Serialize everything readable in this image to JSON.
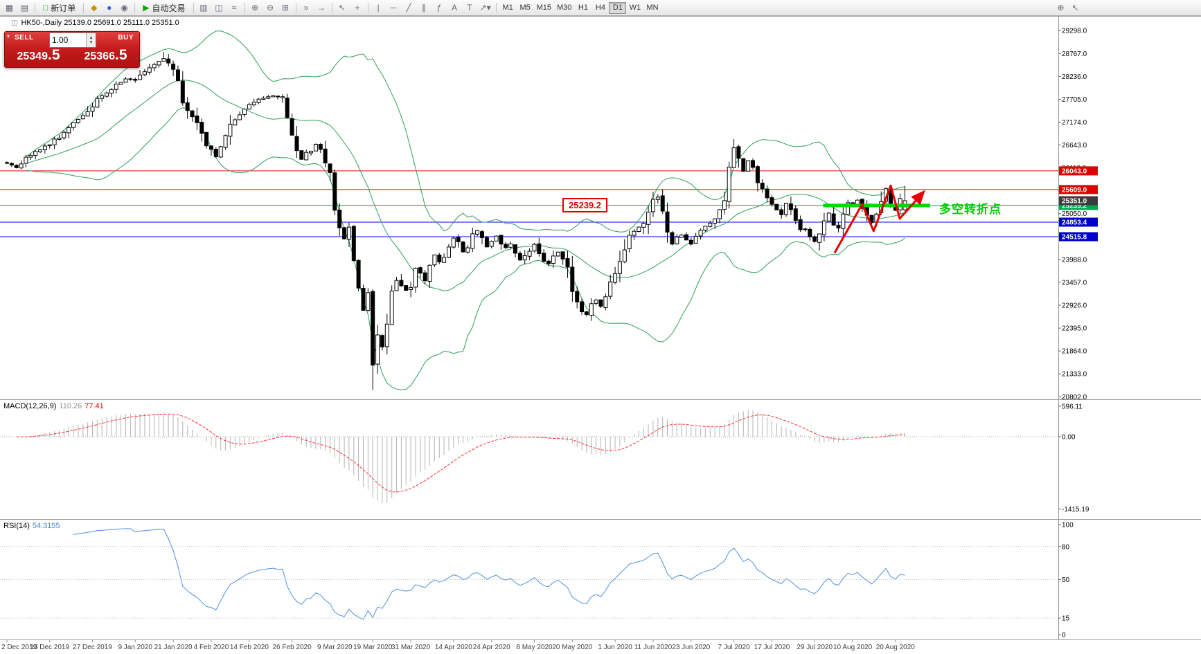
{
  "toolbar": {
    "new_order_label": "新订单",
    "autotrading_label": "自动交易",
    "timeframes": [
      "M1",
      "M5",
      "M15",
      "M30",
      "H1",
      "H4",
      "D1",
      "W1",
      "MN"
    ],
    "active_timeframe": "D1",
    "icons": {
      "new_chart": "▦",
      "profiles": "▤",
      "new_order": "□",
      "market_watch": "◆",
      "navigator": "●",
      "terminal": "◉",
      "autotrading_play": "▶",
      "chart_bars": "▥",
      "chart_candles": "◫",
      "chart_line": "≈",
      "zoom_in": "⊕",
      "zoom_out": "⊖",
      "tile_windows": "⊞",
      "auto_scroll": "»",
      "chart_shift": "→",
      "cursor": "↖",
      "crosshair": "+",
      "vline": "|",
      "hline": "─",
      "trendline": "╱",
      "channel": "∥",
      "fibonacci": "ƒ",
      "text": "A",
      "label": "T",
      "arrows": "↗",
      "dropdown": "▾",
      "magnifier": "⊕",
      "pointer_edit": "↖"
    }
  },
  "chart": {
    "title": "HK50-,Daily 25139.0 25691.0 25111.0 25351.0",
    "title_icon": "◫"
  },
  "one_click": {
    "sell_label": "SELL",
    "buy_label": "BUY",
    "sell_price": "25349.5",
    "buy_price": "25366.5",
    "sell_price_main": "25349",
    "sell_price_frac": ".5",
    "buy_price_main": "25366",
    "buy_price_frac": ".5",
    "volume": "1.00"
  },
  "annotations": {
    "price_callout": "25239.2",
    "turning_point_label": "多空转折点"
  },
  "indicators": {
    "macd": {
      "name": "MACD(12,26,9)",
      "value": "110.26",
      "signal": "77.41"
    },
    "rsi": {
      "name": "RSI(14)",
      "value": "54.3155"
    }
  },
  "chart_data": {
    "type": "candlestick",
    "symbol": "HK50-",
    "timeframe": "Daily",
    "last_ohlc": {
      "open": 25139.0,
      "high": 25691.0,
      "low": 25111.0,
      "close": 25351.0
    },
    "bid": "25349.5",
    "ask": "25366.5",
    "price_scale_ticks": [
      29298,
      28767,
      28236,
      27705,
      27174,
      26643,
      26112,
      25581,
      25050,
      24519,
      23988,
      23457,
      22926,
      22395,
      21864,
      21333,
      20802
    ],
    "hlines": [
      {
        "price": 26043.0,
        "label": "26043.0",
        "color": "#ff0000",
        "tag_color": "#e00000",
        "width": 1
      },
      {
        "price": 25609.0,
        "label": "25609.0",
        "color": "#ff0000",
        "tag_color": "#e00000",
        "width": 1
      },
      {
        "price": 25239.2,
        "label": "25239.2",
        "color": "#00a650",
        "tag_color": "#00a650",
        "width": 1
      },
      {
        "price": 24853.4,
        "label": "24853.4",
        "color": "#0000ff",
        "tag_color": "#0000cc",
        "width": 1
      },
      {
        "price": 24515.8,
        "label": "24515.8",
        "color": "#0000ff",
        "tag_color": "#0000cc",
        "width": 1
      }
    ],
    "current_price_tag": {
      "price": 25351.0,
      "label": "25351.0",
      "color": "#3c3c3c"
    },
    "trend_segment": {
      "price": 25239.2,
      "from_index": 171.8,
      "to_index": 194.3,
      "color": "#00d800",
      "width": 5
    },
    "zigzag": [
      [
        174.2,
        24140
      ],
      [
        180,
        25270
      ],
      [
        182.4,
        24645
      ],
      [
        186,
        25700
      ],
      [
        187.9,
        24935
      ],
      [
        192.7,
        25525
      ]
    ],
    "zigzag_color": "#e80000",
    "bollinger": {
      "period": 20,
      "deviation": 2,
      "color": "#2e9e5b"
    },
    "macd": {
      "fast": 12,
      "slow": 26,
      "signal": 9,
      "scale": [
        596.11,
        0,
        -1415.19
      ],
      "histogram_color": "#b4b4b4",
      "signal_color": "#ff2a2a"
    },
    "rsi": {
      "period": 14,
      "scale": [
        100,
        80,
        50,
        15,
        0
      ],
      "levels": [
        80,
        50,
        15
      ],
      "color": "#4f8fde"
    },
    "date_axis": [
      {
        "label": "2 Dec 2019",
        "i": 0
      },
      {
        "label": "13 Dec 2019",
        "i": 9
      },
      {
        "label": "27 Dec 2019",
        "i": 18
      },
      {
        "label": "9 Jan 2020",
        "i": 27
      },
      {
        "label": "21 Jan 2020",
        "i": 35
      },
      {
        "label": "4 Feb 2020",
        "i": 43
      },
      {
        "label": "14 Feb 2020",
        "i": 51
      },
      {
        "label": "26 Feb 2020",
        "i": 60
      },
      {
        "label": "9 Mar 2020",
        "i": 69
      },
      {
        "label": "19 Mar 2020",
        "i": 77
      },
      {
        "label": "31 Mar 2020",
        "i": 85
      },
      {
        "label": "14 Apr 2020",
        "i": 94
      },
      {
        "label": "24 Apr 2020",
        "i": 102
      },
      {
        "label": "8 May 2020",
        "i": 111
      },
      {
        "label": "20 May 2020",
        "i": 119
      },
      {
        "label": "1 Jun 2020",
        "i": 128
      },
      {
        "label": "11 Jun 2020",
        "i": 136
      },
      {
        "label": "23 Jun 2020",
        "i": 144
      },
      {
        "label": "7 Jul 2020",
        "i": 153
      },
      {
        "label": "17 Jul 2020",
        "i": 161
      },
      {
        "label": "29 Jul 2020",
        "i": 170
      },
      {
        "label": "10 Aug 2020",
        "i": 178
      },
      {
        "label": "20 Aug 2020",
        "i": 187
      }
    ],
    "anchors": [
      [
        0,
        26230
      ],
      [
        2,
        26120
      ],
      [
        4,
        26320
      ],
      [
        6,
        26480
      ],
      [
        9,
        26680
      ],
      [
        12,
        26920
      ],
      [
        14,
        27150
      ],
      [
        17,
        27450
      ],
      [
        19,
        27700
      ],
      [
        21,
        27850
      ],
      [
        23,
        28050
      ],
      [
        25,
        28180
      ],
      [
        27,
        28150
      ],
      [
        29,
        28380
      ],
      [
        31,
        28520
      ],
      [
        33,
        28650
      ],
      [
        34,
        28580
      ],
      [
        35,
        28420
      ],
      [
        36,
        28050
      ],
      [
        37,
        27680
      ],
      [
        38,
        27450
      ],
      [
        39,
        27280
      ],
      [
        40,
        27120
      ],
      [
        41,
        26880
      ],
      [
        42,
        26680
      ],
      [
        43,
        26520
      ],
      [
        44,
        26380
      ],
      [
        45,
        26560
      ],
      [
        46,
        26780
      ],
      [
        47,
        27050
      ],
      [
        48,
        27220
      ],
      [
        49,
        27380
      ],
      [
        50,
        27490
      ],
      [
        52,
        27620
      ],
      [
        54,
        27740
      ],
      [
        56,
        27790
      ],
      [
        58,
        27720
      ],
      [
        59,
        27350
      ],
      [
        60,
        26880
      ],
      [
        61,
        26480
      ],
      [
        62,
        26320
      ],
      [
        63,
        26450
      ],
      [
        64,
        26520
      ],
      [
        65,
        26650
      ],
      [
        66,
        26520
      ],
      [
        67,
        26280
      ],
      [
        68,
        26050
      ],
      [
        69,
        25180
      ],
      [
        70,
        24820
      ],
      [
        71,
        24480
      ],
      [
        72,
        24750
      ],
      [
        73,
        23880
      ],
      [
        74,
        23320
      ],
      [
        75,
        22820
      ],
      [
        76,
        23150
      ],
      [
        77,
        21450
      ],
      [
        78,
        22320
      ],
      [
        79,
        21950
      ],
      [
        80,
        22450
      ],
      [
        81,
        23180
      ],
      [
        82,
        23520
      ],
      [
        83,
        23380
      ],
      [
        84,
        23260
      ],
      [
        85,
        23420
      ],
      [
        86,
        23820
      ],
      [
        87,
        23680
      ],
      [
        88,
        23480
      ],
      [
        89,
        23780
      ],
      [
        90,
        24120
      ],
      [
        91,
        23950
      ],
      [
        92,
        24050
      ],
      [
        93,
        24350
      ],
      [
        94,
        24480
      ],
      [
        95,
        24380
      ],
      [
        96,
        24180
      ],
      [
        97,
        24320
      ],
      [
        98,
        24550
      ],
      [
        99,
        24680
      ],
      [
        100,
        24420
      ],
      [
        101,
        24280
      ],
      [
        102,
        24400
      ],
      [
        103,
        24520
      ],
      [
        104,
        24380
      ],
      [
        105,
        24250
      ],
      [
        106,
        24330
      ],
      [
        107,
        24150
      ],
      [
        108,
        23980
      ],
      [
        109,
        24050
      ],
      [
        110,
        24220
      ],
      [
        111,
        24350
      ],
      [
        112,
        24180
      ],
      [
        113,
        23950
      ],
      [
        114,
        23880
      ],
      [
        115,
        24020
      ],
      [
        116,
        24150
      ],
      [
        117,
        23980
      ],
      [
        118,
        23850
      ],
      [
        119,
        23250
      ],
      [
        120,
        22920
      ],
      [
        121,
        22780
      ],
      [
        122,
        22680
      ],
      [
        123,
        22950
      ],
      [
        124,
        23050
      ],
      [
        125,
        22880
      ],
      [
        126,
        23120
      ],
      [
        127,
        23380
      ],
      [
        128,
        23650
      ],
      [
        129,
        23980
      ],
      [
        130,
        24280
      ],
      [
        131,
        24520
      ],
      [
        132,
        24680
      ],
      [
        133,
        24750
      ],
      [
        134,
        24820
      ],
      [
        135,
        25080
      ],
      [
        136,
        25380
      ],
      [
        137,
        25420
      ],
      [
        138,
        25050
      ],
      [
        139,
        24680
      ],
      [
        140,
        24380
      ],
      [
        141,
        24480
      ],
      [
        142,
        24550
      ],
      [
        143,
        24420
      ],
      [
        144,
        24350
      ],
      [
        145,
        24580
      ],
      [
        146,
        24680
      ],
      [
        147,
        24750
      ],
      [
        148,
        24820
      ],
      [
        149,
        24950
      ],
      [
        150,
        25080
      ],
      [
        151,
        25350
      ],
      [
        152,
        26120
      ],
      [
        153,
        26580
      ],
      [
        154,
        26320
      ],
      [
        155,
        26050
      ],
      [
        156,
        26280
      ],
      [
        157,
        26050
      ],
      [
        158,
        25780
      ],
      [
        159,
        25620
      ],
      [
        160,
        25480
      ],
      [
        161,
        25250
      ],
      [
        162,
        25120
      ],
      [
        163,
        25050
      ],
      [
        164,
        25280
      ],
      [
        165,
        25120
      ],
      [
        166,
        24950
      ],
      [
        167,
        24720
      ],
      [
        168,
        24650
      ],
      [
        169,
        24520
      ],
      [
        170,
        24420
      ],
      [
        171,
        24620
      ],
      [
        172,
        24820
      ],
      [
        173,
        25050
      ],
      [
        174,
        24780
      ],
      [
        175,
        24650
      ],
      [
        176,
        25120
      ],
      [
        177,
        25280
      ],
      [
        178,
        25220
      ],
      [
        179,
        25380
      ],
      [
        180,
        25180
      ],
      [
        181,
        24980
      ],
      [
        182,
        24850
      ],
      [
        183,
        25050
      ],
      [
        184,
        25420
      ],
      [
        185,
        25650
      ],
      [
        186,
        25320
      ],
      [
        187,
        25150
      ],
      [
        188,
        25380
      ],
      [
        189,
        25351
      ]
    ],
    "wick_overrides": [
      {
        "i": 77,
        "low": 20960
      },
      {
        "i": 33,
        "high": 28800
      },
      {
        "i": 153,
        "high": 26780
      }
    ]
  }
}
